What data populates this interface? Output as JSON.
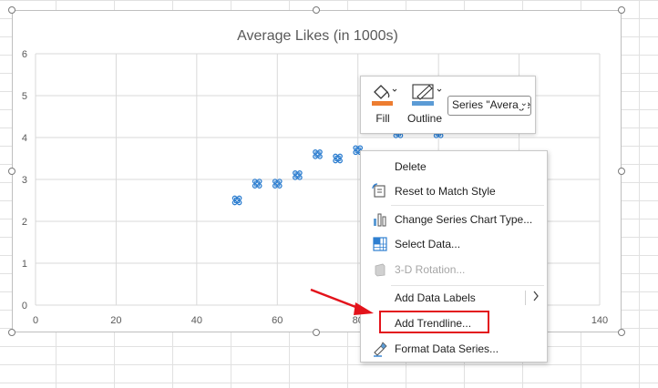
{
  "chart_data": {
    "type": "scatter",
    "title": "Average Likes (in 1000s)",
    "xlim": [
      0,
      140
    ],
    "ylim": [
      0,
      6
    ],
    "x_ticks": [
      0,
      20,
      40,
      60,
      80,
      100,
      120,
      140
    ],
    "y_ticks": [
      0,
      1,
      2,
      3,
      4,
      5,
      6
    ],
    "grid": true,
    "marker": "cloverleaf",
    "marker_color": "#2f7fd0",
    "points": [
      {
        "x": 50,
        "y": 2.5
      },
      {
        "x": 55,
        "y": 2.9
      },
      {
        "x": 60,
        "y": 2.9
      },
      {
        "x": 65,
        "y": 3.1
      },
      {
        "x": 70,
        "y": 3.6
      },
      {
        "x": 75,
        "y": 3.5
      },
      {
        "x": 80,
        "y": 3.7
      },
      {
        "x": 90,
        "y": 4.1
      },
      {
        "x": 100,
        "y": 4.1
      }
    ]
  },
  "mini_toolbar": {
    "fill_label": "Fill",
    "outline_label": "Outline",
    "series_select_value": "Series \"Average",
    "fill_color": "#ed7d31",
    "outline_color": "#5b9bd5"
  },
  "context_menu": {
    "items": [
      {
        "label": "Delete",
        "icon": "none"
      },
      {
        "label": "Reset to Match Style",
        "icon": "reset-style-icon"
      },
      {
        "label": "Change Series Chart Type...",
        "icon": "chart-type-icon"
      },
      {
        "label": "Select Data...",
        "icon": "select-data-icon"
      },
      {
        "label": "3-D Rotation...",
        "icon": "rotation-3d-icon",
        "disabled": true
      },
      {
        "label": "Add Data Labels",
        "icon": "none",
        "submenu": true
      },
      {
        "label": "Add Trendline...",
        "icon": "none"
      },
      {
        "label": "Format Data Series...",
        "icon": "format-series-icon"
      }
    ]
  },
  "annotation": {
    "highlight_color": "#e3131b"
  }
}
